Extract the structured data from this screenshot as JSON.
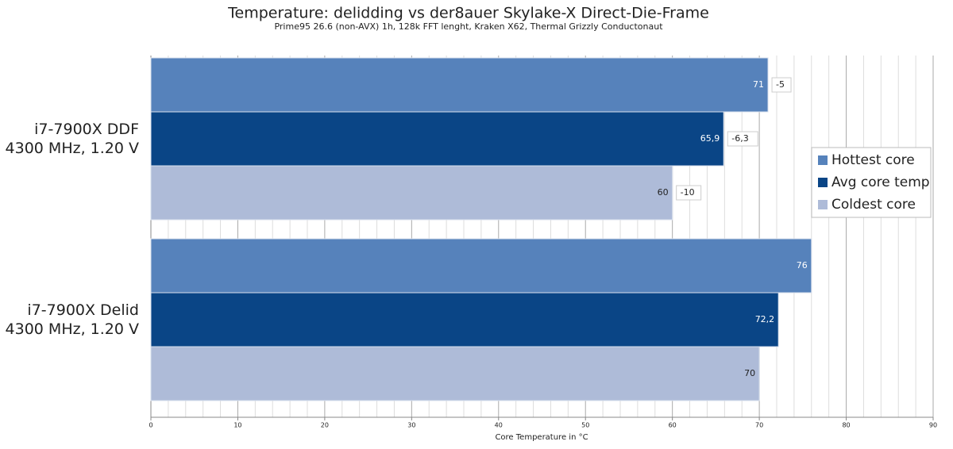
{
  "chart_data": {
    "type": "hbar",
    "title": "Temperature: delidding vs der8auer Skylake-X Direct-Die-Frame",
    "subtitle": "Prime95 26.6 (non-AVX) 1h, 128k FFT lenght, Kraken X62, Thermal Grizzly Conductonaut",
    "x_label": "Core Temperature in °C",
    "categories": [
      "i7-7900X DDF\n4300 MHz, 1.20 V",
      "i7-7900X Delid\n4300 MHz, 1.20 V"
    ],
    "series": [
      {
        "name": "Hottest core",
        "color": "#5682bb",
        "values": [
          71,
          76
        ]
      },
      {
        "name": "Avg core temp",
        "color": "#0a4586",
        "values": [
          65.9,
          72.2
        ],
        "value_labels": [
          "65,9",
          "72,2"
        ]
      },
      {
        "name": "Coldest core",
        "color": "#aebbd8",
        "values": [
          60,
          70
        ]
      }
    ],
    "deltas": {
      "values": [
        -5,
        -6.3,
        -10
      ],
      "labels": [
        "-5",
        "-6,3",
        "-10"
      ]
    },
    "xlim": [
      0,
      90
    ],
    "xticks": [
      0,
      10,
      20,
      30,
      40,
      50,
      60,
      70,
      80,
      90
    ],
    "grid": true,
    "legend": "right"
  }
}
